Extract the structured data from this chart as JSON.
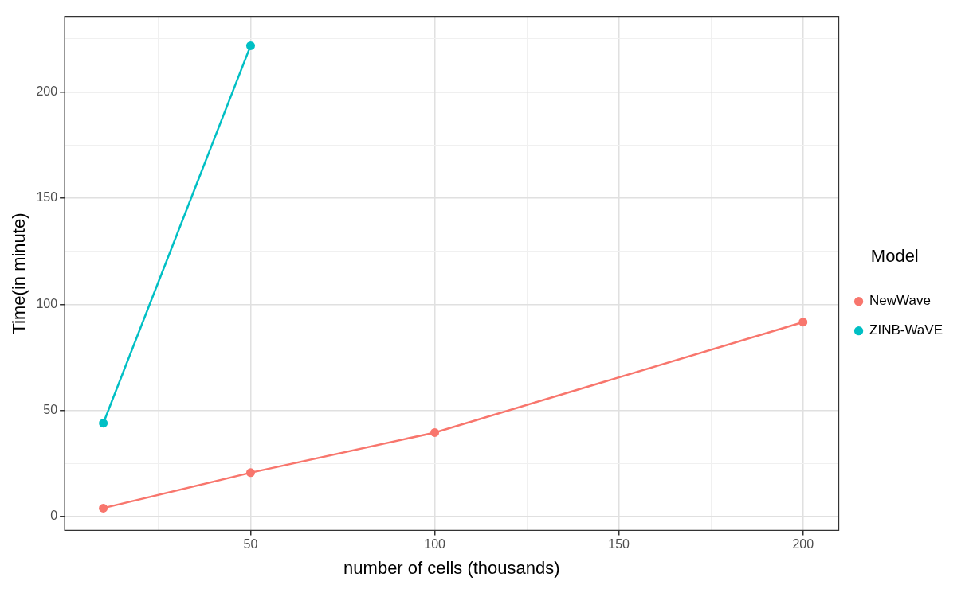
{
  "chart_data": {
    "type": "line",
    "xlabel": "number of cells (thousands)",
    "ylabel": "Time(in minute)",
    "legend_title": "Model",
    "legend": "right",
    "grid": true,
    "marker": "circle",
    "line_style": "solid",
    "x": [
      10,
      50,
      100,
      200
    ],
    "series": [
      {
        "name": "NewWave",
        "color": "#f8766d",
        "values": [
          4,
          20.7,
          39.6,
          91.6
        ]
      },
      {
        "name": "ZINB-WaVE",
        "color": "#00bfc4",
        "x": [
          10,
          50
        ],
        "values": [
          44,
          221.8
        ]
      }
    ],
    "xlim": [
      -0.5,
      209.7
    ],
    "ylim": [
      -6.5,
      235.6
    ],
    "xticks": [
      {
        "value": 25,
        "label": null
      },
      50,
      {
        "value": 75,
        "label": null
      },
      100,
      {
        "value": 125,
        "label": null
      },
      150,
      {
        "value": 175,
        "label": null
      },
      200
    ],
    "yticks": [
      0,
      {
        "value": 25,
        "label": null
      },
      50,
      {
        "value": 75,
        "label": null
      },
      100,
      {
        "value": 125,
        "label": null
      },
      150,
      {
        "value": 175,
        "label": null
      },
      200,
      {
        "value": 225,
        "label": null
      }
    ]
  }
}
